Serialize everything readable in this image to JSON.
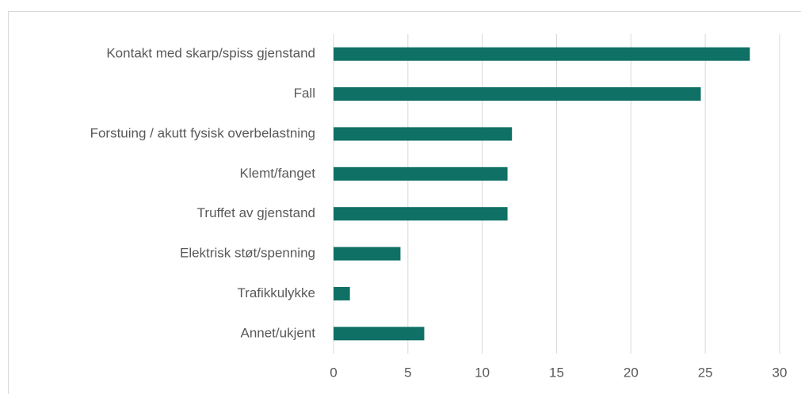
{
  "chart_data": {
    "type": "bar",
    "orientation": "horizontal",
    "categories": [
      "Kontakt med skarp/spiss gjenstand",
      "Fall",
      "Forstuing / akutt fysisk overbelastning",
      "Klemt/fanget",
      "Truffet av gjenstand",
      "Elektrisk støt/spenning",
      "Trafikkulykke",
      "Annet/ukjent"
    ],
    "values": [
      28,
      24.7,
      12,
      11.7,
      11.7,
      4.5,
      1.1,
      6.1
    ],
    "color": "#0f7065",
    "xlim": [
      0,
      30
    ],
    "xticks": [
      0,
      5,
      10,
      15,
      20,
      25,
      30
    ],
    "grid": true
  }
}
